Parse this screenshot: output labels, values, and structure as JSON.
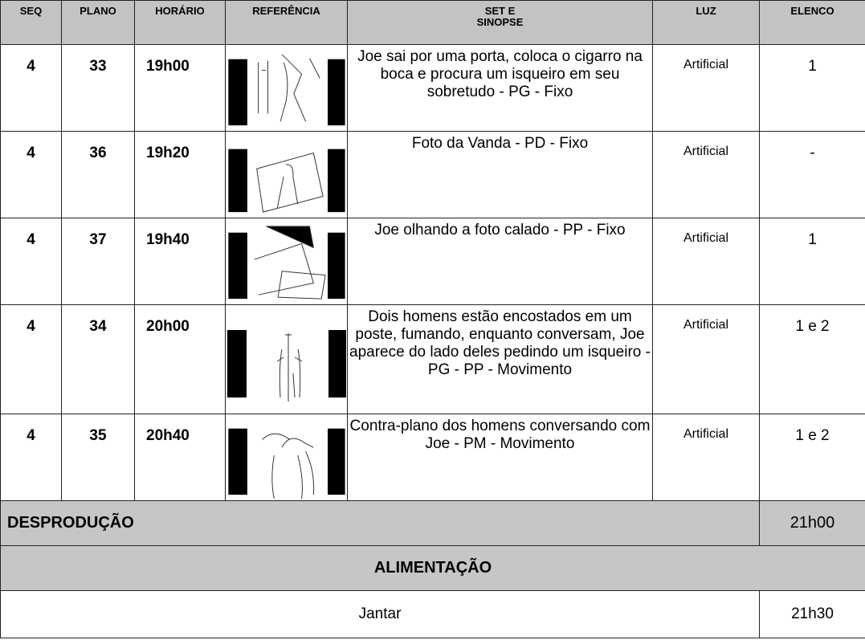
{
  "table": {
    "header": [
      "SEQ",
      "PLANO",
      "HORÁRIO",
      "REFERÊNCIA",
      "SET E\nSINOPSE",
      "LUZ",
      "ELENCO"
    ],
    "rows": [
      {
        "seq": "4",
        "plano": "33",
        "horario": "19h00",
        "sinopse": "Joe sai por uma porta, coloca o cigarro na boca e procura um isqueiro em seu sobretudo - PG - Fixo",
        "luz": "Artificial",
        "elenco": "1"
      },
      {
        "seq": "4",
        "plano": "36",
        "horario": "19h20",
        "sinopse": "Foto da Vanda - PD - Fixo",
        "luz": "Artificial",
        "elenco": "-"
      },
      {
        "seq": "4",
        "plano": "37",
        "horario": "19h40",
        "sinopse": "Joe olhando a foto calado - PP - Fixo",
        "luz": "Artificial",
        "elenco": "1"
      },
      {
        "seq": "4",
        "plano": "34",
        "horario": "20h00",
        "sinopse": "Dois homens estão encostados em um poste, fumando, enquanto conversam, Joe aparece do lado deles pedindo um isqueiro - PG - PP - Movimento",
        "luz": "Artificial",
        "elenco": "1 e 2"
      },
      {
        "seq": "4",
        "plano": "35",
        "horario": "20h40",
        "sinopse": "Contra-plano dos homens conversando com Joe - PM - Movimento",
        "luz": "Artificial",
        "elenco": "1 e 2"
      }
    ],
    "desproducao": {
      "label": "DESPRODUÇÃO",
      "time": "21h00"
    },
    "alimentacao": {
      "title": "ALIMENTAÇÃO"
    },
    "jantar": {
      "label": "Jantar",
      "time": "21h30"
    }
  }
}
